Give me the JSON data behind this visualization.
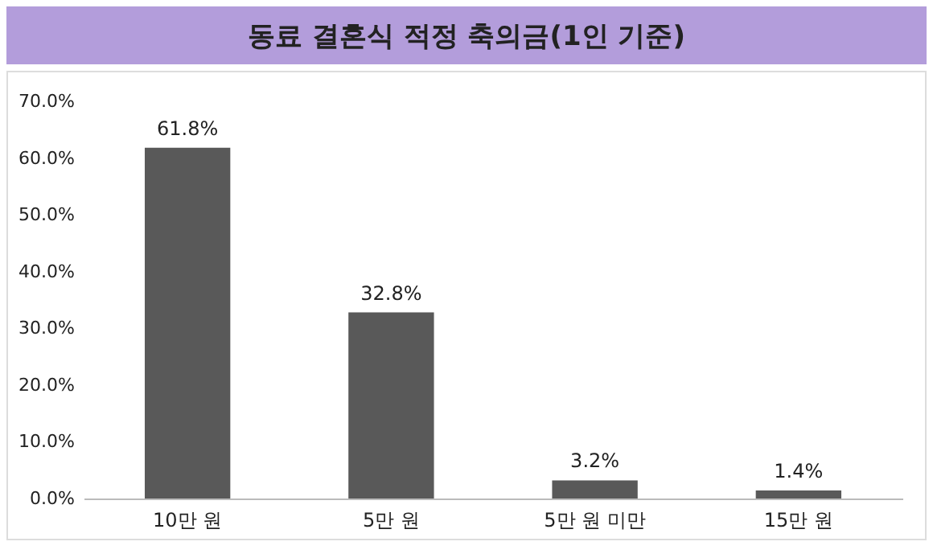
{
  "chart_data": {
    "type": "bar",
    "title": "동료 결혼식 적정 축의금(1인 기준)",
    "categories": [
      "10만 원",
      "5만 원",
      "5만 원 미만",
      "15만 원"
    ],
    "values": [
      61.8,
      32.8,
      3.2,
      1.4
    ],
    "value_labels": [
      "61.8%",
      "32.8%",
      "3.2%",
      "1.4%"
    ],
    "color": "#595959",
    "ylim": [
      0,
      70
    ],
    "yticks": [
      {
        "value": 0,
        "label": "0.0%"
      },
      {
        "value": 10,
        "label": "10.0%"
      },
      {
        "value": 20,
        "label": "20.0%"
      },
      {
        "value": 30,
        "label": "30.0%"
      },
      {
        "value": 40,
        "label": "40.0%"
      },
      {
        "value": 50,
        "label": "50.0%"
      },
      {
        "value": 60,
        "label": "60.0%"
      },
      {
        "value": 70,
        "label": "70.0%"
      }
    ]
  }
}
